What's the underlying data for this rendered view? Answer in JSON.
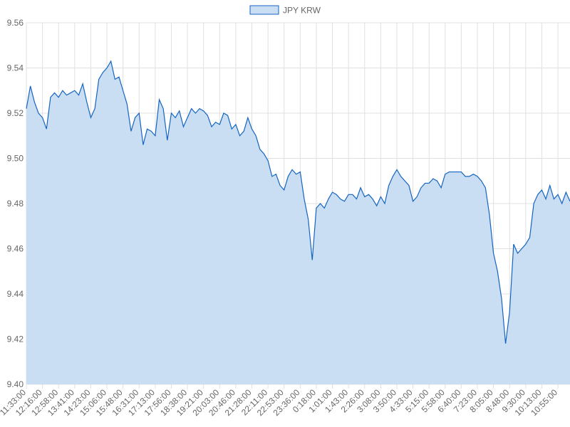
{
  "chart_data": {
    "type": "line",
    "categories": [
      "11:33:00",
      null,
      null,
      null,
      "12:16:00",
      null,
      null,
      null,
      "12:58:00",
      null,
      null,
      null,
      "13:41:00",
      null,
      null,
      null,
      "14:23:00",
      null,
      null,
      null,
      "15:06:00",
      null,
      null,
      null,
      "15:48:00",
      null,
      null,
      null,
      "16:31:00",
      null,
      null,
      null,
      "17:13:00",
      null,
      null,
      null,
      "17:56:00",
      null,
      null,
      null,
      "18:38:00",
      null,
      null,
      null,
      "19:21:00",
      null,
      null,
      null,
      "20:03:00",
      null,
      null,
      null,
      "20:46:00",
      null,
      null,
      null,
      "21:28:00",
      null,
      null,
      null,
      "22:11:00",
      null,
      null,
      null,
      "22:53:00",
      null,
      null,
      null,
      "23:36:00",
      null,
      null,
      null,
      "0:18:00",
      null,
      null,
      null,
      "1:01:00",
      null,
      null,
      null,
      "1:43:00",
      null,
      null,
      null,
      "2:26:00",
      null,
      null,
      null,
      "3:08:00",
      null,
      null,
      null,
      "3:50:00",
      null,
      null,
      null,
      "4:33:00",
      null,
      null,
      null,
      "5:15:00",
      null,
      null,
      null,
      "5:58:00",
      null,
      null,
      null,
      "6:40:00",
      null,
      null,
      null,
      "7:23:00",
      null,
      null,
      null,
      "8:05:00",
      null,
      null,
      null,
      "8:48:00",
      null,
      null,
      null,
      "9:30:00",
      null,
      null,
      null,
      "10:13:00",
      null,
      null,
      null,
      "10:55:00",
      null,
      null,
      null
    ],
    "series": [
      {
        "name": "JPY KRW",
        "color": "#1565c0",
        "fill": "#c9ddf3",
        "values": [
          9.522,
          9.532,
          9.525,
          9.52,
          9.518,
          9.513,
          9.527,
          9.529,
          9.527,
          9.53,
          9.528,
          9.529,
          9.53,
          9.528,
          9.533,
          9.525,
          9.518,
          9.522,
          9.535,
          9.538,
          9.54,
          9.543,
          9.535,
          9.536,
          9.53,
          9.524,
          9.512,
          9.518,
          9.52,
          9.506,
          9.513,
          9.512,
          9.51,
          9.526,
          9.522,
          9.508,
          9.52,
          9.518,
          9.521,
          9.514,
          9.518,
          9.522,
          9.52,
          9.522,
          9.521,
          9.519,
          9.514,
          9.516,
          9.515,
          9.52,
          9.519,
          9.513,
          9.515,
          9.51,
          9.512,
          9.518,
          9.513,
          9.51,
          9.504,
          9.502,
          9.499,
          9.492,
          9.493,
          9.488,
          9.486,
          9.492,
          9.495,
          9.493,
          9.494,
          9.482,
          9.473,
          9.455,
          9.478,
          9.48,
          9.478,
          9.482,
          9.485,
          9.484,
          9.482,
          9.481,
          9.484,
          9.484,
          9.482,
          9.487,
          9.483,
          9.484,
          9.482,
          9.479,
          9.483,
          9.48,
          9.488,
          9.492,
          9.495,
          9.492,
          9.49,
          9.488,
          9.481,
          9.483,
          9.487,
          9.489,
          9.489,
          9.491,
          9.49,
          9.487,
          9.493,
          9.494,
          9.494,
          9.494,
          9.494,
          9.492,
          9.492,
          9.493,
          9.492,
          9.49,
          9.487,
          9.475,
          9.458,
          9.45,
          9.438,
          9.418,
          9.432,
          9.462,
          9.458,
          9.46,
          9.462,
          9.465,
          9.48,
          9.484,
          9.486,
          9.482,
          9.488,
          9.482,
          9.484,
          9.48,
          9.485,
          9.481
        ]
      }
    ],
    "ylim": [
      9.4,
      9.56
    ],
    "yticks": [
      {
        "value": 9.4,
        "label": "9.40"
      },
      9.42,
      9.44,
      9.46,
      9.48,
      {
        "value": 9.5,
        "label": "9.50"
      },
      9.52,
      9.54,
      9.56
    ],
    "grid": true,
    "legend": "top"
  }
}
